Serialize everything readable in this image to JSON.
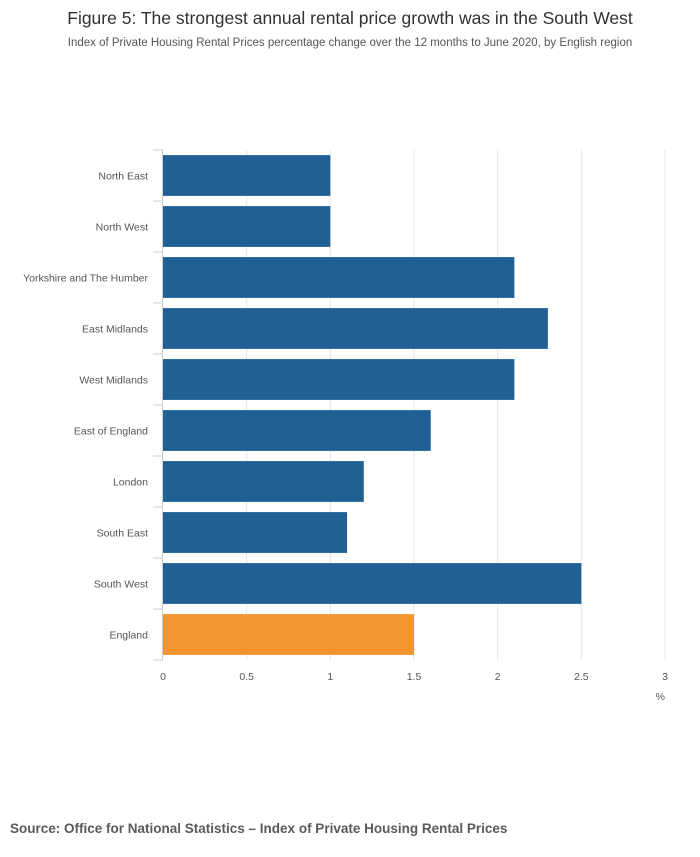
{
  "title": "Figure 5: The strongest annual rental price growth was in the South West",
  "subtitle": "Index of Private Housing Rental Prices percentage change over the 12 months to June 2020, by English region",
  "source": "Source: Office for National Statistics – Index of Private Housing Rental Prices",
  "colors": {
    "region": "#206095",
    "england": "#F39431",
    "grid": "#e6e6e6",
    "axis": "#cccccc"
  },
  "chart_data": {
    "type": "bar",
    "orientation": "horizontal",
    "title": "Figure 5: The strongest annual rental price growth was in the South West",
    "subtitle": "Index of Private Housing Rental Prices percentage change over the 12 months to June 2020, by English region",
    "categories": [
      "North East",
      "North West",
      "Yorkshire and The Humber",
      "East Midlands",
      "West Midlands",
      "East of England",
      "London",
      "South East",
      "South West",
      "England"
    ],
    "values": [
      1.0,
      1.0,
      2.1,
      2.3,
      2.1,
      1.6,
      1.2,
      1.1,
      2.5,
      1.5
    ],
    "highlight": "England",
    "xlabel": "%",
    "xlim": [
      0,
      3
    ],
    "xticks": [
      0,
      0.5,
      1,
      1.5,
      2,
      2.5,
      3
    ],
    "xtick_labels": [
      "0",
      "0.5",
      "1",
      "1.5",
      "2",
      "2.5",
      "3"
    ],
    "grid": true,
    "legend": "none"
  }
}
